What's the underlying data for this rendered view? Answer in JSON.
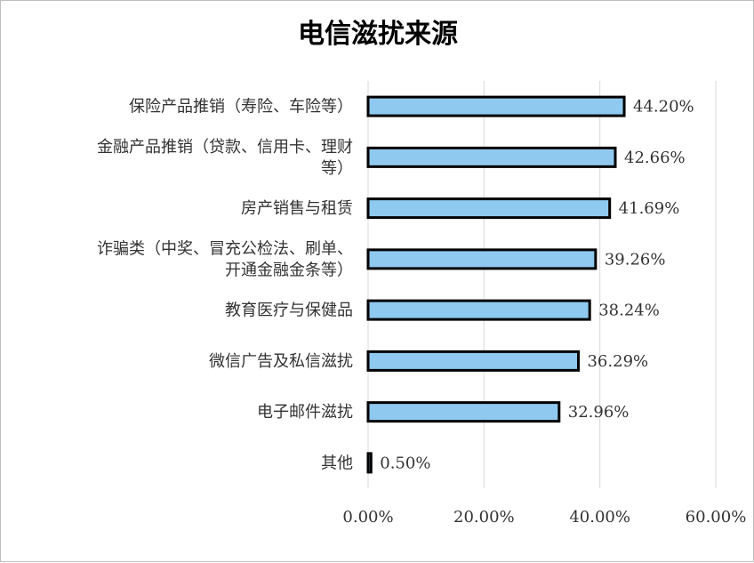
{
  "chart_data": {
    "type": "bar",
    "orientation": "horizontal",
    "title": "电信滋扰来源",
    "xlabel": "",
    "ylabel": "",
    "categories": [
      [
        "保险产品推销（寿险、车险等）"
      ],
      [
        "金融产品推销（贷款、信用卡、理财",
        "等）"
      ],
      [
        "房产销售与租赁"
      ],
      [
        "诈骗类（中奖、冒充公检法、刷单、",
        "开通金融金条等）"
      ],
      [
        "教育医疗与保健品"
      ],
      [
        "微信广告及私信滋扰"
      ],
      [
        "电子邮件滋扰"
      ],
      [
        "其他"
      ]
    ],
    "values": [
      44.2,
      42.66,
      41.69,
      39.26,
      38.24,
      36.29,
      32.96,
      0.5
    ],
    "value_labels": [
      "44.20%",
      "42.66%",
      "41.69%",
      "39.26%",
      "38.24%",
      "36.29%",
      "32.96%",
      "0.50%"
    ],
    "xlim": [
      0,
      60
    ],
    "ticks": [
      "0.00%",
      "20.00%",
      "40.00%",
      "60.00%"
    ],
    "tick_values": [
      0,
      20,
      40,
      60
    ],
    "grid": "vertical",
    "legend": "none",
    "colors": {
      "bar_fill": "#8fc9ef",
      "bar_stroke": "#000000",
      "grid": "#d9d9d9",
      "text": "#333333"
    }
  }
}
